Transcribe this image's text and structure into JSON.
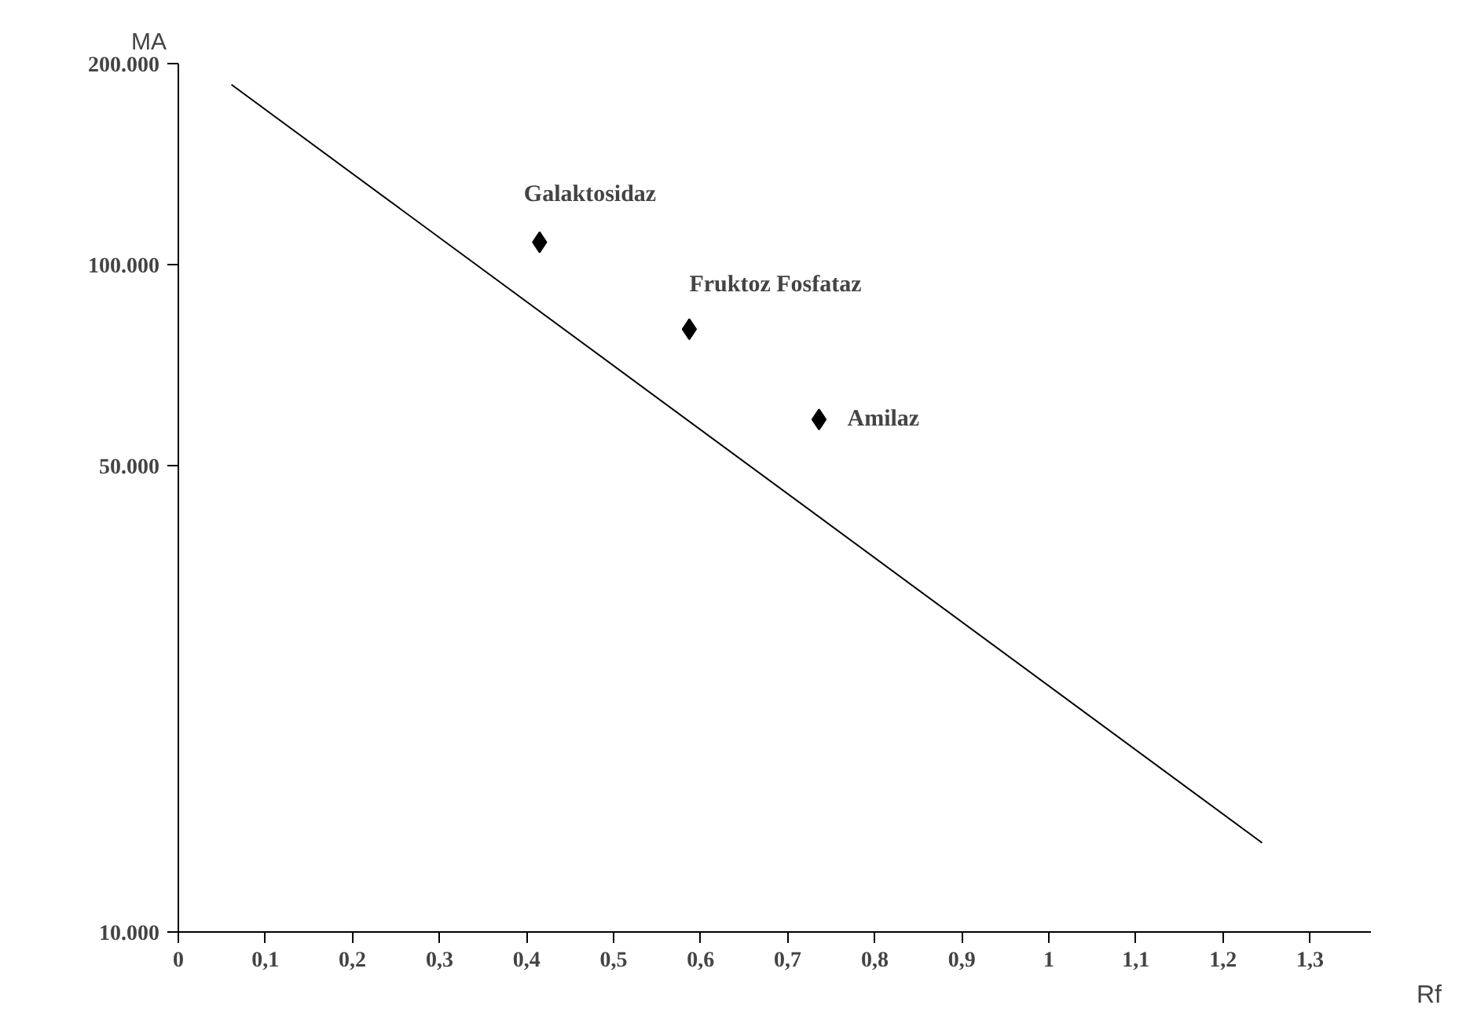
{
  "chart_data": {
    "type": "scatter",
    "xlabel": "Rf",
    "ylabel": "MA",
    "log": "y",
    "xlim": [
      0,
      1.37
    ],
    "ylim": [
      10000,
      200000
    ],
    "xticks": [
      0,
      {
        "value": 0.1,
        "label": "0,1"
      },
      {
        "value": 0.2,
        "label": "0,2"
      },
      {
        "value": 0.3,
        "label": "0,3"
      },
      {
        "value": 0.4,
        "label": "0,4"
      },
      {
        "value": 0.5,
        "label": "0,5"
      },
      {
        "value": 0.6,
        "label": "0,6"
      },
      {
        "value": 0.7,
        "label": "0,7"
      },
      {
        "value": 0.8,
        "label": "0,8"
      },
      {
        "value": 0.9,
        "label": "0,9"
      },
      1,
      {
        "value": 1.1,
        "label": "1,1"
      },
      {
        "value": 1.2,
        "label": "1,2"
      },
      {
        "value": 1.3,
        "label": "1,3"
      }
    ],
    "yticks": [
      {
        "value": 10000,
        "label": "10.000"
      },
      {
        "value": 50000,
        "label": "50.000"
      },
      {
        "value": 100000,
        "label": "100.000"
      },
      {
        "value": 200000,
        "label": "200.000"
      }
    ],
    "grid": false,
    "marker": "diamond",
    "series": [
      {
        "type": "line",
        "color": "#000000",
        "x": [
          0.061,
          1.245
        ],
        "values": [
          186000,
          13600
        ],
        "marker": "none"
      },
      {
        "color": "#000000",
        "x": [
          0.415,
          0.587,
          0.736
        ],
        "values": [
          108000,
          80000,
          58600
        ]
      }
    ],
    "annotations": [
      {
        "text": "Galaktosidaz",
        "x": 0.415,
        "y": 108000
      },
      {
        "text": "Fruktoz Fosfataz",
        "x": 0.587,
        "y": 80000
      },
      {
        "text": "Amilaz",
        "x": 0.736,
        "y": 58600
      }
    ]
  }
}
